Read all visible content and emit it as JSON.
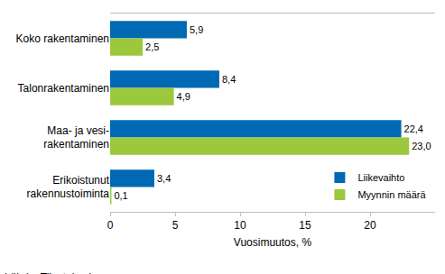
{
  "chart_data": {
    "type": "bar",
    "orientation": "horizontal",
    "categories": [
      "Koko rakentaminen",
      "Talonrakentaminen",
      "Maa- ja vesi-\nrakentaminen",
      "Erikoistunut\nrakennustoiminta"
    ],
    "series": [
      {
        "name": "Liikevaihto",
        "color": "#0069b4",
        "values": [
          5.9,
          8.4,
          22.4,
          3.4
        ],
        "value_labels": [
          "5,9",
          "8,4",
          "22,4",
          "3,4"
        ]
      },
      {
        "name": "Myynnin määrä",
        "color": "#9bc83c",
        "values": [
          2.5,
          4.9,
          23.0,
          0.1
        ],
        "value_labels": [
          "2,5",
          "4,9",
          "23,0",
          "0,1"
        ]
      }
    ],
    "x_label": "Vuosimuutos, %",
    "xlim": [
      0,
      25
    ],
    "xticks": [
      0,
      5,
      10,
      15,
      20
    ],
    "grid": false,
    "legend": "lower right",
    "data_labels": true,
    "annotations": [
      "Lähde: Tilastokeskus"
    ]
  }
}
